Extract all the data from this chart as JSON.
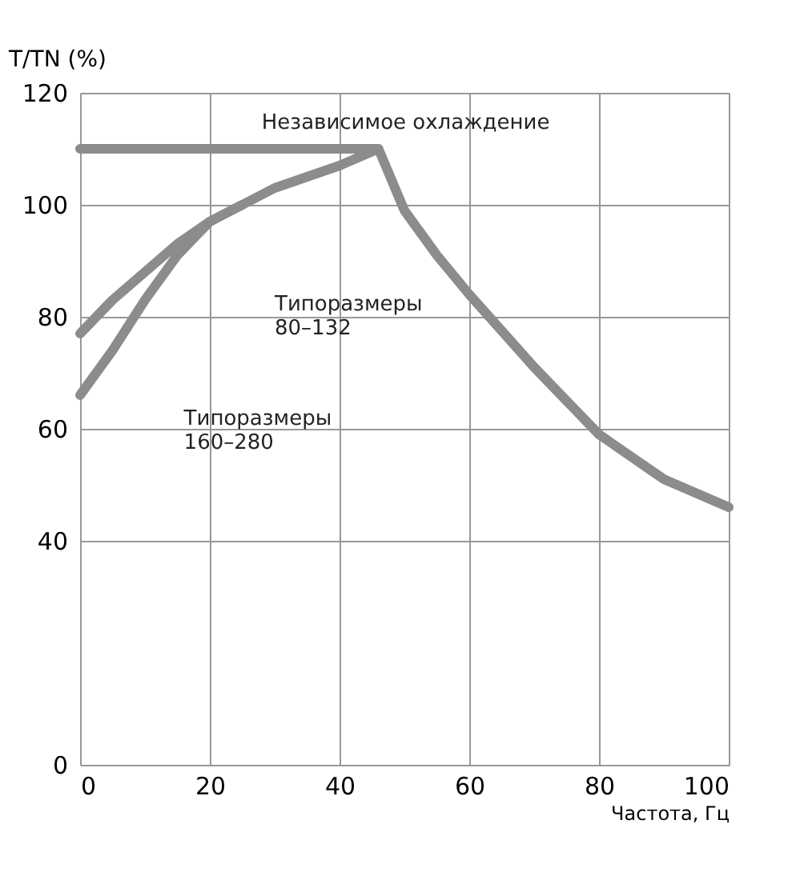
{
  "chart_data": {
    "type": "line",
    "xlabel": "Частота, Гц",
    "ylabel": "T/TN (%)",
    "xlim": [
      0,
      100
    ],
    "xticks": [
      0,
      20,
      40,
      60,
      80,
      100
    ],
    "ylim": [
      0,
      120
    ],
    "yticks": [
      0,
      40,
      60,
      80,
      100,
      120
    ],
    "grid": true,
    "line_style": "solid",
    "marker": "none",
    "series": [
      {
        "color": "#8c8c8c",
        "x": [
          0,
          46,
          50,
          55,
          60,
          70,
          80,
          90,
          100
        ],
        "values": [
          110,
          110,
          99,
          91,
          84,
          71,
          59,
          51,
          46
        ]
      },
      {
        "color": "#8c8c8c",
        "x": [
          0,
          5,
          10,
          15,
          20,
          25,
          30,
          40,
          46
        ],
        "values": [
          66,
          74,
          83,
          91,
          97,
          100,
          103,
          107,
          110
        ]
      },
      {
        "color": "#8c8c8c",
        "x": [
          0,
          5,
          10,
          15,
          20,
          25
        ],
        "values": [
          77,
          83,
          88,
          93,
          97,
          100
        ]
      }
    ],
    "annotations": [
      "Независимое охлаждение",
      "Типоразмеры\n80–132",
      "Типоразмеры\n160–280"
    ]
  }
}
